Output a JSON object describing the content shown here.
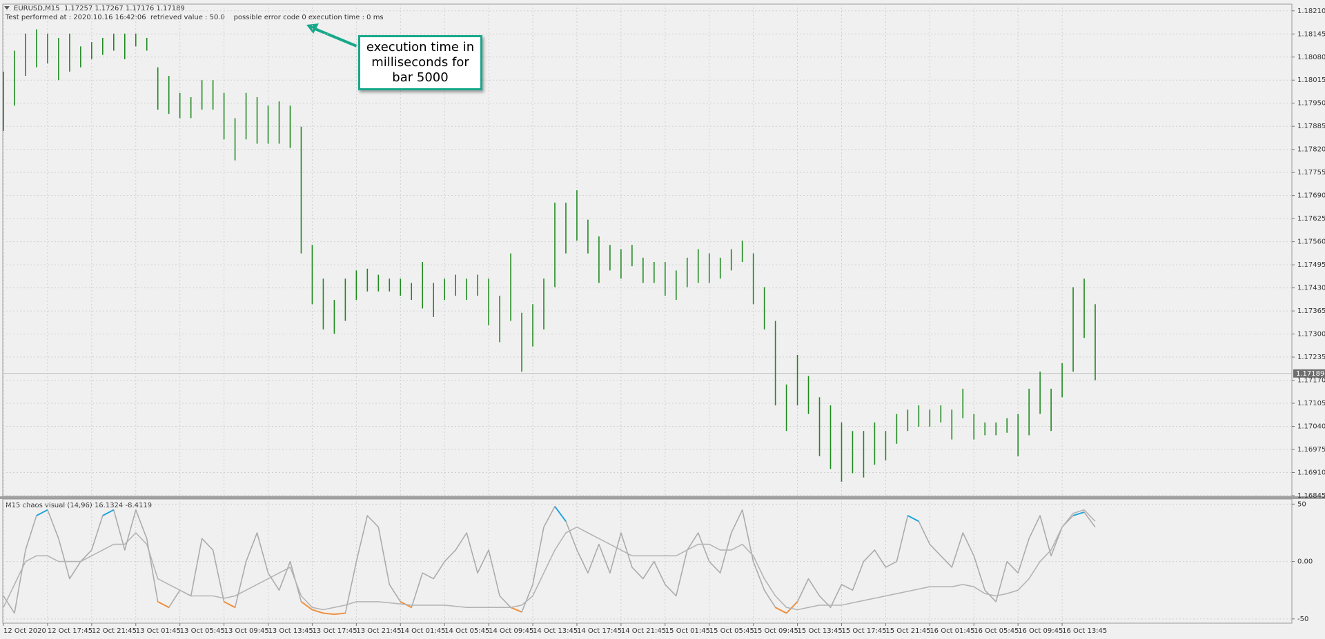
{
  "chart_data": [
    {
      "type": "hlbar",
      "title": "EURUSD,M15  1.17257 1.17267 1.17176 1.17189",
      "subtitle": "Test performed at : 2020.10.16 16:42:06  retrieved value : 50.0    possible error code 0 execution time : 0 ms",
      "annotation": "execution time in milliseconds for bar 5000",
      "color": "#1f8a1f",
      "last_price": 1.17189,
      "grid": true,
      "categories": [
        "12 Oct 2020",
        null,
        null,
        null,
        "12 Oct 17:45",
        null,
        null,
        null,
        "12 Oct 21:45",
        null,
        null,
        null,
        "13 Oct 01:45",
        null,
        null,
        null,
        "13 Oct 05:45",
        null,
        null,
        null,
        "13 Oct 09:45",
        null,
        null,
        null,
        "13 Oct 13:45",
        null,
        null,
        null,
        "13 Oct 17:45",
        null,
        null,
        null,
        "13 Oct 21:45",
        null,
        null,
        null,
        "14 Oct 01:45",
        null,
        null,
        null,
        "14 Oct 05:45",
        null,
        null,
        null,
        "14 Oct 09:45",
        null,
        null,
        null,
        "14 Oct 13:45",
        null,
        null,
        null,
        "14 Oct 17:45",
        null,
        null,
        null,
        "14 Oct 21:45",
        null,
        null,
        null,
        "15 Oct 01:45",
        null,
        null,
        null,
        "15 Oct 05:45",
        null,
        null,
        null,
        "15 Oct 09:45",
        null,
        null,
        null,
        "15 Oct 13:45",
        null,
        null,
        null,
        "15 Oct 17:45",
        null,
        null,
        null,
        "15 Oct 21:45",
        null,
        null,
        null,
        "16 Oct 01:45",
        null,
        null,
        null,
        "16 Oct 05:45",
        null,
        null,
        null,
        "16 Oct 09:45",
        null,
        null,
        null,
        "16 Oct 13:45",
        null,
        null,
        null
      ],
      "high": [
        1.18039,
        1.18098,
        1.18146,
        1.18158,
        1.18146,
        1.18134,
        1.18146,
        1.1811,
        1.18122,
        1.18134,
        1.18146,
        1.18146,
        1.18146,
        1.18134,
        1.18051,
        1.18027,
        1.17979,
        1.17967,
        1.18015,
        1.18015,
        1.17979,
        1.17908,
        1.17979,
        1.17967,
        1.17943,
        1.17955,
        1.17943,
        1.17884,
        1.17551,
        1.17456,
        1.17396,
        1.17456,
        1.17479,
        1.17484,
        1.17467,
        1.17456,
        1.17456,
        1.17444,
        1.17503,
        1.17444,
        1.17456,
        1.17467,
        1.17456,
        1.17467,
        1.17456,
        1.17408,
        1.17527,
        1.1736,
        1.17384,
        1.17456,
        1.1767,
        1.1767,
        1.17705,
        1.17622,
        1.17575,
        1.17551,
        1.17539,
        1.17551,
        1.17515,
        1.17503,
        1.17503,
        1.17479,
        1.17515,
        1.17539,
        1.17527,
        1.17515,
        1.17539,
        1.17563,
        1.17527,
        1.17432,
        1.17337,
        1.17158,
        1.17241,
        1.17182,
        1.17122,
        1.17099,
        1.17051,
        1.17027,
        1.17027,
        1.17051,
        1.17027,
        1.17075,
        1.17087,
        1.17099,
        1.17087,
        1.17099,
        1.17087,
        1.17146,
        1.17075,
        1.17051,
        1.17051,
        1.17063,
        1.17075,
        1.17146,
        1.17194,
        1.17146,
        1.17218,
        1.17432,
        1.17456,
        1.17384
      ],
      "low": [
        1.17872,
        1.17943,
        1.18027,
        1.18051,
        1.18062,
        1.18015,
        1.18039,
        1.18051,
        1.18074,
        1.18086,
        1.18098,
        1.18074,
        1.1811,
        1.18098,
        1.17932,
        1.1792,
        1.17908,
        1.17908,
        1.17932,
        1.17932,
        1.17848,
        1.17789,
        1.17848,
        1.17836,
        1.17836,
        1.17836,
        1.17824,
        1.17527,
        1.17384,
        1.17313,
        1.17301,
        1.17337,
        1.17396,
        1.1742,
        1.1742,
        1.1742,
        1.17408,
        1.17396,
        1.17372,
        1.17348,
        1.17396,
        1.17408,
        1.17396,
        1.17408,
        1.17325,
        1.17277,
        1.17337,
        1.17194,
        1.17265,
        1.17313,
        1.17432,
        1.17527,
        1.17563,
        1.17527,
        1.17444,
        1.17479,
        1.17456,
        1.17491,
        1.17444,
        1.17444,
        1.17408,
        1.17396,
        1.17432,
        1.17444,
        1.17444,
        1.17456,
        1.17479,
        1.17503,
        1.17384,
        1.17313,
        1.17099,
        1.17027,
        1.17099,
        1.17075,
        1.16956,
        1.1692,
        1.16884,
        1.16908,
        1.16896,
        1.16932,
        1.16944,
        1.16991,
        1.17027,
        1.17039,
        1.17039,
        1.17051,
        1.17003,
        1.17063,
        1.17003,
        1.17015,
        1.17015,
        1.17022,
        1.16956,
        1.17015,
        1.17075,
        1.17027,
        1.17122,
        1.17194,
        1.17289,
        1.1717
      ],
      "ylim": [
        1.16843,
        1.18229
      ],
      "yticks": [
        {
          "value": 1.1821,
          "label": "1.18210"
        },
        1.18145,
        {
          "value": 1.1808,
          "label": "1.18080"
        },
        1.18015,
        {
          "value": 1.1795,
          "label": "1.17950"
        },
        1.17885,
        {
          "value": 1.1782,
          "label": "1.17820"
        },
        1.17755,
        {
          "value": 1.1769,
          "label": "1.17690"
        },
        1.17625,
        {
          "value": 1.1756,
          "label": "1.17560"
        },
        1.17495,
        {
          "value": 1.1743,
          "label": "1.17430"
        },
        1.17365,
        {
          "value": 1.173,
          "label": "1.17300"
        },
        1.17235,
        {
          "value": 1.1717,
          "label": "1.17170"
        },
        1.17105,
        {
          "value": 1.1704,
          "label": "1.17040"
        },
        1.16975,
        {
          "value": 1.1691,
          "label": "1.16910"
        },
        1.16845
      ]
    },
    {
      "type": "line",
      "title": "M15 chaos visual (14,96) 16.1324 -8.4119",
      "grid": true,
      "extreme_colors": {
        "high": "#1ea6e0",
        "low": "#f0913f"
      },
      "ylim": [
        -53.7,
        54.4
      ],
      "yticks": [
        50,
        {
          "value": 0,
          "label": "0.00"
        },
        -50
      ],
      "lines": [
        {
          "color": "#ababab",
          "values": [
            -30,
            -45,
            10,
            40,
            45,
            20,
            -15,
            0,
            10,
            40,
            45,
            10,
            45,
            20,
            -35,
            -40,
            -25,
            -30,
            20,
            10,
            -35,
            -40,
            0,
            25,
            -10,
            -25,
            0,
            -35,
            -42,
            -45,
            -46,
            -45,
            0,
            40,
            30,
            -20,
            -35,
            -40,
            -10,
            -15,
            0,
            10,
            25,
            -10,
            10,
            -30,
            -40,
            -44,
            -20,
            30,
            48,
            35,
            10,
            -10,
            15,
            -10,
            25,
            -5,
            -15,
            0,
            -20,
            -30,
            10,
            25,
            0,
            -10,
            25,
            45,
            0,
            -25,
            -40,
            -45,
            -35,
            -15,
            -30,
            -40,
            -20,
            -25,
            0,
            10,
            -5,
            0,
            40,
            35,
            15,
            5,
            -5,
            25,
            5,
            -25,
            -35,
            0,
            -10,
            20,
            40,
            5,
            30,
            40,
            43,
            30
          ]
        },
        {
          "color": "#b4b4b4",
          "values": [
            -40,
            -20,
            0,
            5,
            5,
            0,
            0,
            0,
            5,
            10,
            15,
            15,
            25,
            15,
            -15,
            -20,
            -25,
            -30,
            -30,
            -30,
            -32,
            -30,
            -25,
            -20,
            -15,
            -10,
            -5,
            -30,
            -40,
            -42,
            -40,
            -38,
            -35,
            -35,
            -35,
            -36,
            -37,
            -38,
            -38,
            -38,
            -38,
            -39,
            -40,
            -40,
            -40,
            -40,
            -40,
            -38,
            -30,
            -10,
            10,
            25,
            30,
            25,
            20,
            15,
            10,
            5,
            5,
            5,
            5,
            5,
            10,
            15,
            15,
            10,
            10,
            15,
            5,
            -15,
            -30,
            -40,
            -42,
            -40,
            -38,
            -38,
            -38,
            -36,
            -34,
            -32,
            -30,
            -28,
            -26,
            -24,
            -22,
            -22,
            -22,
            -20,
            -22,
            -28,
            -30,
            -28,
            -25,
            -15,
            0,
            10,
            30,
            42,
            45,
            35
          ]
        }
      ]
    }
  ]
}
